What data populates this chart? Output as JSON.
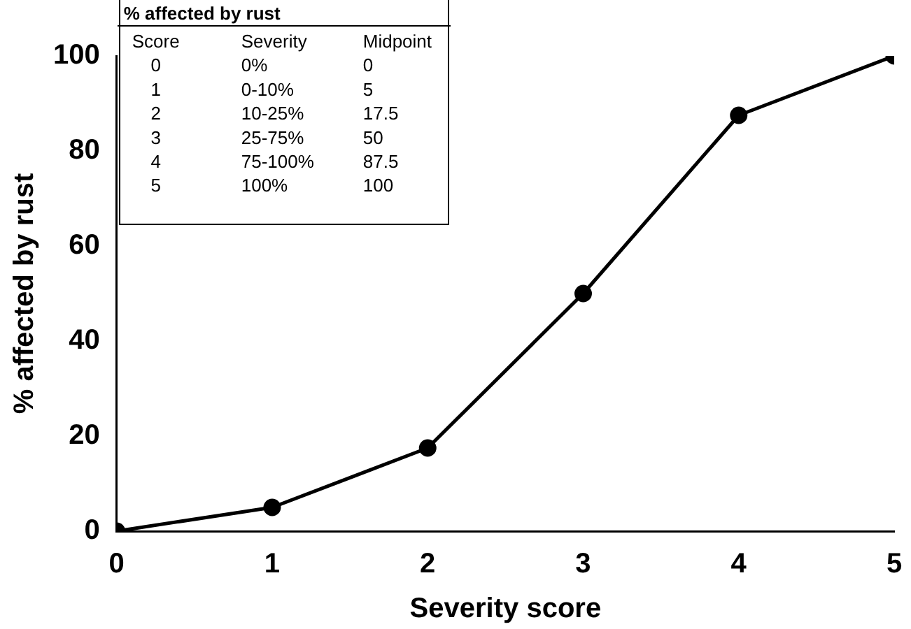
{
  "chart_data": {
    "type": "line",
    "xlabel": "Severity score",
    "ylabel": "% affected by rust",
    "x": [
      0,
      1,
      2,
      3,
      4,
      5
    ],
    "series": [
      {
        "color": "#000000",
        "values": [
          0,
          5,
          17.5,
          50,
          87.5,
          100
        ]
      }
    ],
    "xlim": [
      0,
      5
    ],
    "xticks": [
      0,
      1,
      2,
      3,
      4,
      5
    ],
    "ylim": [
      0,
      100
    ],
    "yticks": [
      0,
      20,
      40,
      60,
      80,
      100
    ],
    "grid": false,
    "legend": false,
    "marker": "circle",
    "line_style": "solid",
    "annotations": [
      "% affected by rust",
      "Score",
      "Severity",
      "Midpoint",
      "0",
      "0%",
      "0",
      "1",
      "0-10%",
      "5",
      "2",
      "10-25%",
      "17.5",
      "3",
      "25-75%",
      "50",
      "4",
      "75-100%",
      "87.5",
      "5",
      "100%",
      "100"
    ]
  }
}
